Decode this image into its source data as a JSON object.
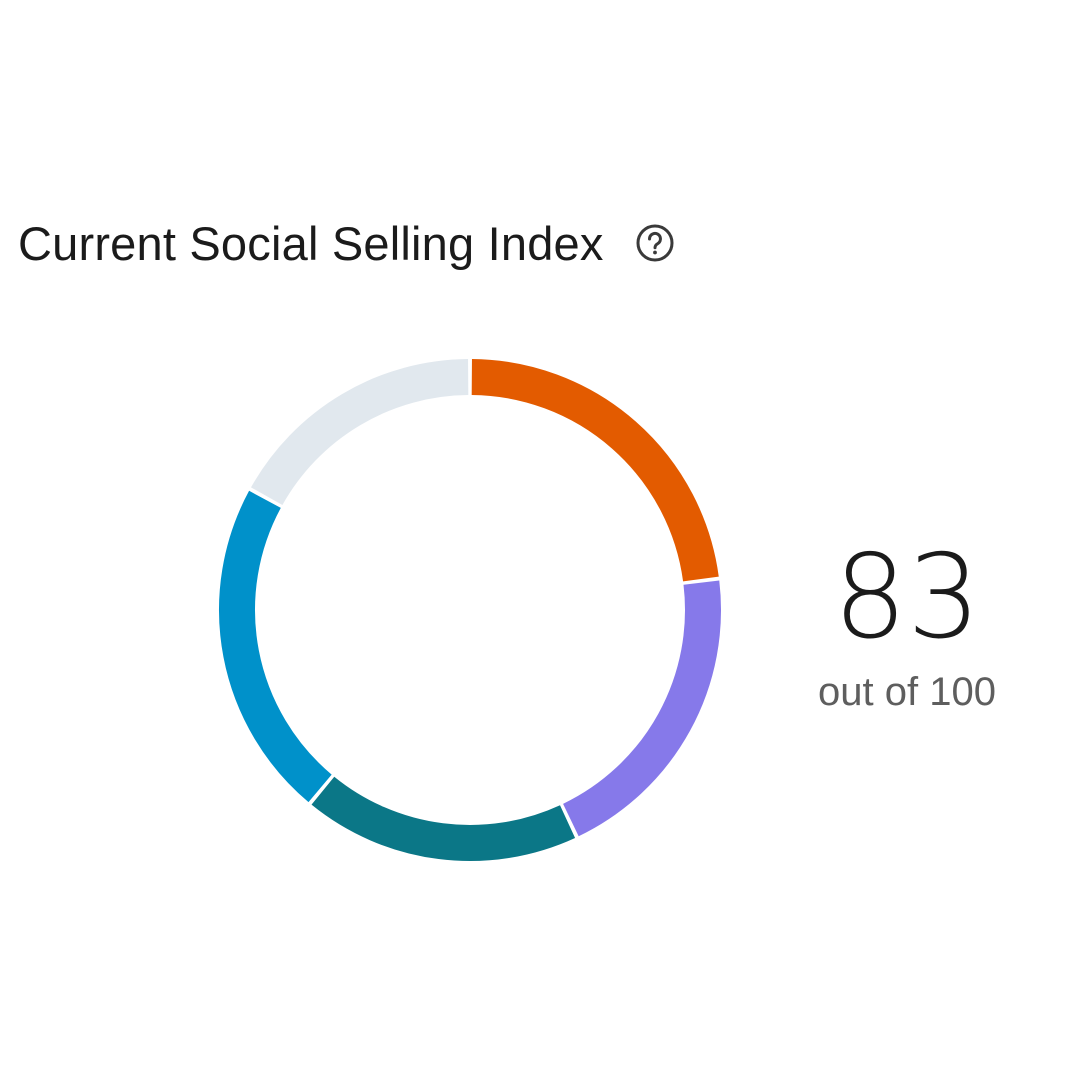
{
  "header": {
    "title": "Current Social Selling Index",
    "help_icon": "question-circle-icon"
  },
  "score": {
    "value": "83",
    "caption": "out of 100"
  },
  "chart_data": {
    "type": "pie",
    "style": "donut",
    "title": "",
    "total": 100,
    "segments": [
      {
        "name": "",
        "value": 23,
        "color": "#e35b00"
      },
      {
        "name": "",
        "value": 20,
        "color": "#8679ea"
      },
      {
        "name": "",
        "value": 18,
        "color": "#0b7787"
      },
      {
        "name": "",
        "value": 22,
        "color": "#0091ca"
      },
      {
        "name": "",
        "value": 17,
        "color": "#e1e8ee"
      }
    ]
  }
}
